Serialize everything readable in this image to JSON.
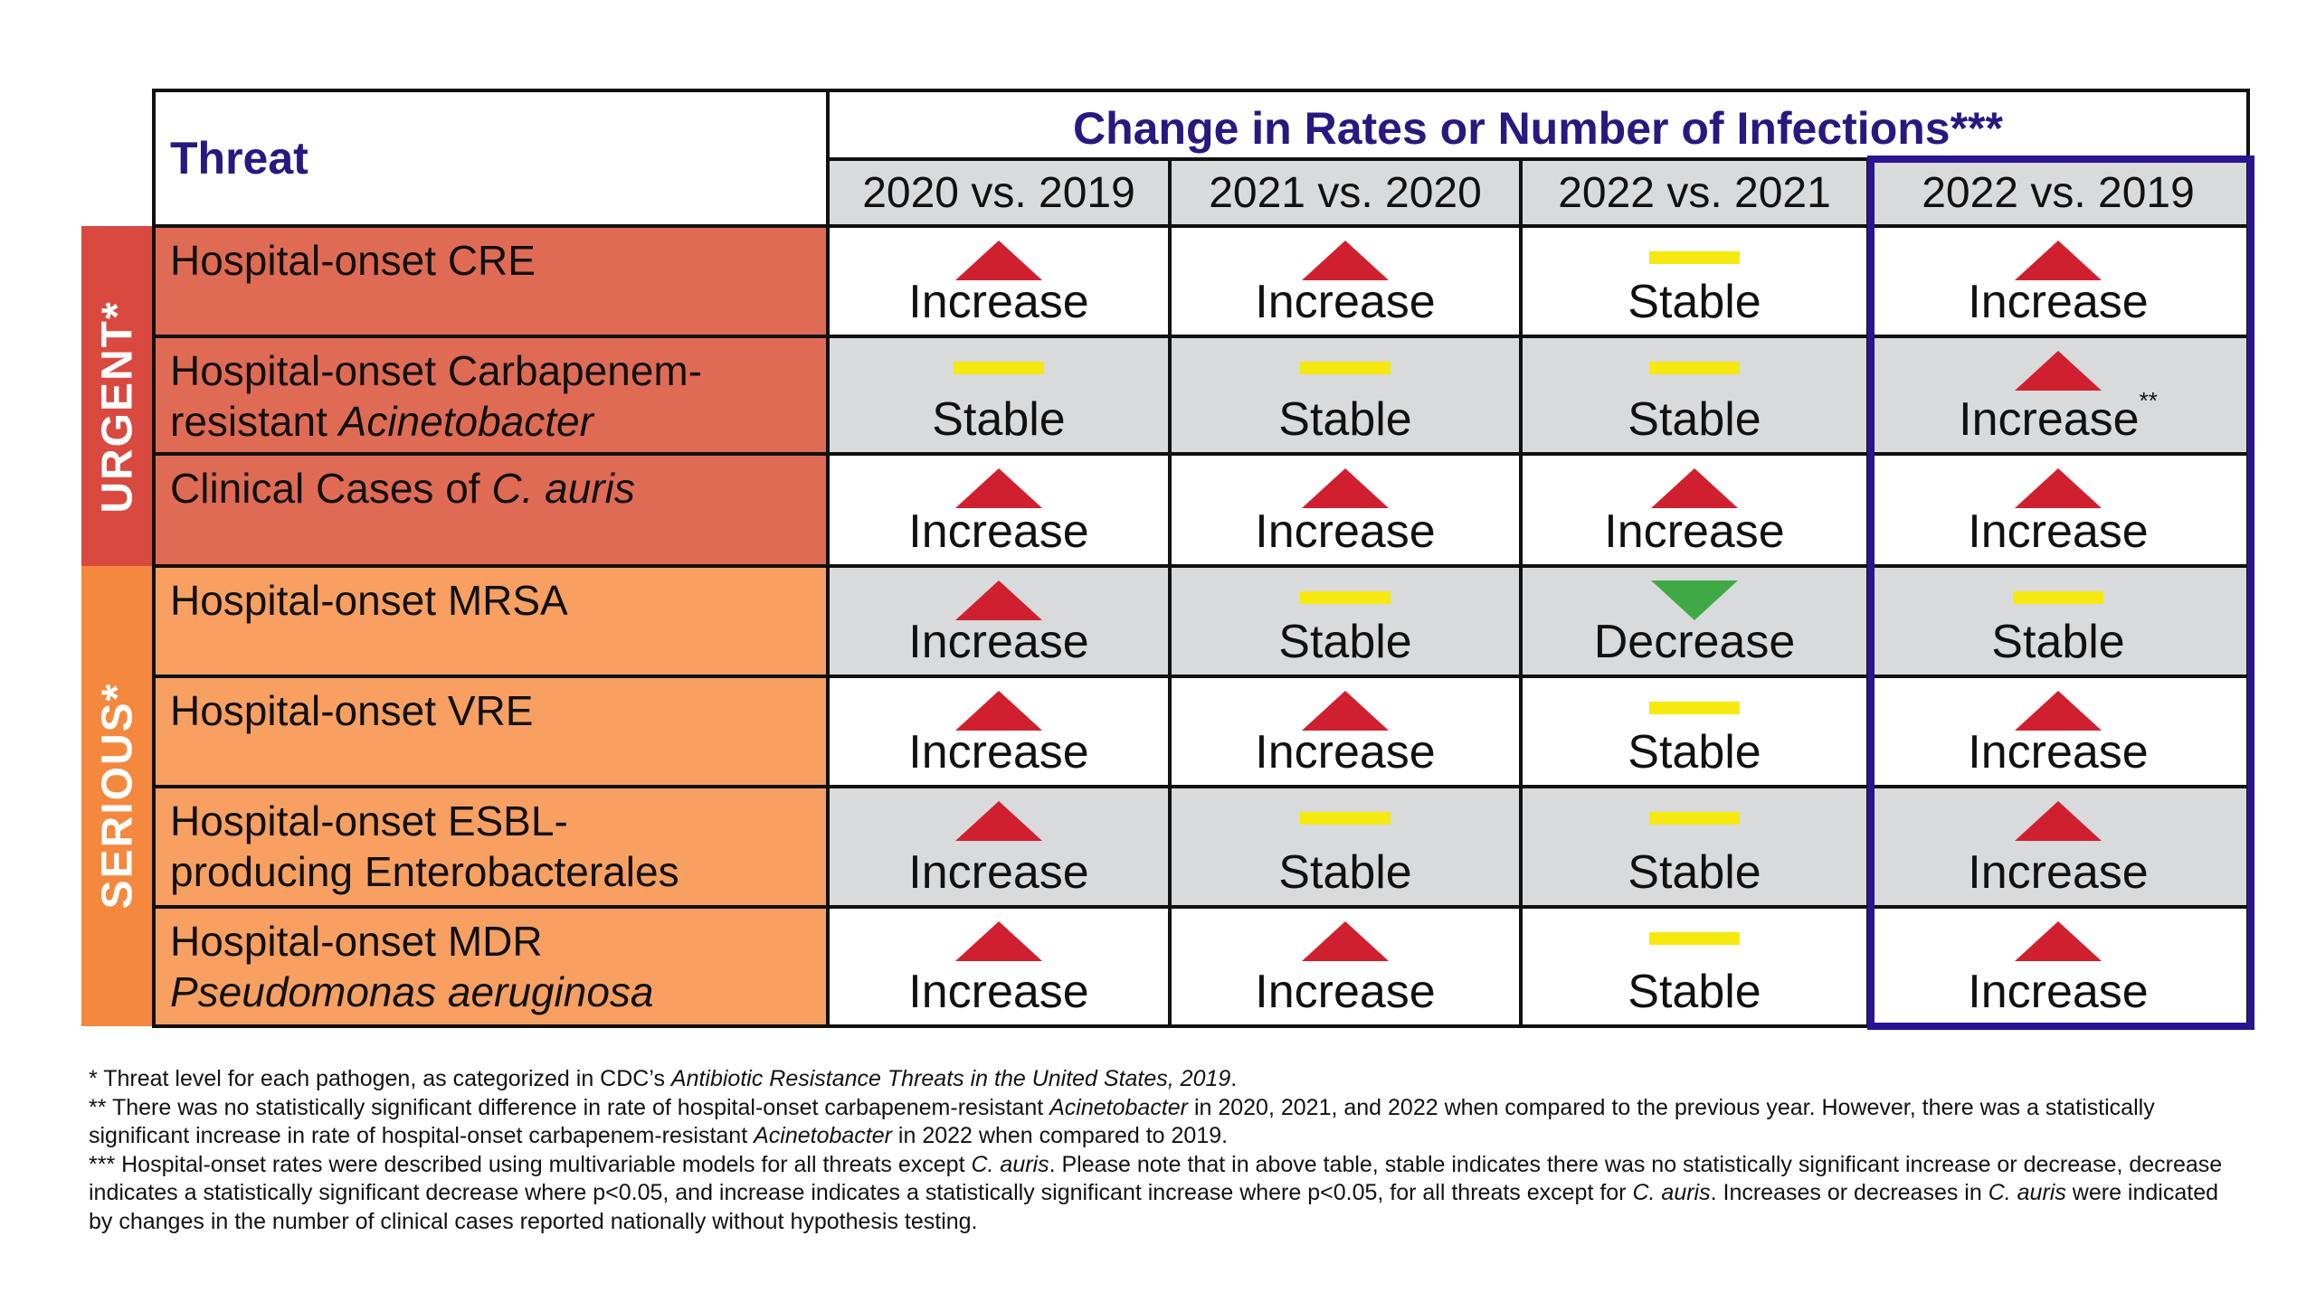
{
  "header": {
    "threat_label": "Threat",
    "change_label": "Change in Rates or Number of Infections***",
    "columns": [
      "2020 vs. 2019",
      "2021 vs. 2020",
      "2022 vs. 2021",
      "2022 vs. 2019"
    ]
  },
  "categories": [
    {
      "label": "URGENT*",
      "color": "#d9493f"
    },
    {
      "label": "SERIOUS*",
      "color": "#f4883e"
    }
  ],
  "colors": {
    "urgent_row": "#e06b55",
    "serious_row": "#f7a062",
    "increase": "#d02030",
    "decrease": "#3faa45",
    "stable": "#f5e90f",
    "shaded_cell": "#d9dadc",
    "highlight_border": "#2a1494",
    "header_text": "#2a1880"
  },
  "rows": [
    {
      "category": "URGENT*",
      "name_parts": [
        "Hospital-onset CRE"
      ],
      "values": [
        {
          "status": "Increase"
        },
        {
          "status": "Increase"
        },
        {
          "status": "Stable"
        },
        {
          "status": "Increase"
        }
      ]
    },
    {
      "category": "URGENT*",
      "name_parts": [
        "Hospital-onset Carbapenem-",
        "resistant ",
        "Acinetobacter"
      ],
      "values": [
        {
          "status": "Stable"
        },
        {
          "status": "Stable"
        },
        {
          "status": "Stable"
        },
        {
          "status": "Increase",
          "note": "**"
        }
      ]
    },
    {
      "category": "URGENT*",
      "name_parts": [
        "Clinical Cases of ",
        "C. auris"
      ],
      "values": [
        {
          "status": "Increase"
        },
        {
          "status": "Increase"
        },
        {
          "status": "Increase"
        },
        {
          "status": "Increase"
        }
      ]
    },
    {
      "category": "SERIOUS*",
      "name_parts": [
        "Hospital-onset MRSA"
      ],
      "values": [
        {
          "status": "Increase"
        },
        {
          "status": "Stable"
        },
        {
          "status": "Decrease"
        },
        {
          "status": "Stable"
        }
      ]
    },
    {
      "category": "SERIOUS*",
      "name_parts": [
        "Hospital-onset VRE"
      ],
      "values": [
        {
          "status": "Increase"
        },
        {
          "status": "Increase"
        },
        {
          "status": "Stable"
        },
        {
          "status": "Increase"
        }
      ]
    },
    {
      "category": "SERIOUS*",
      "name_parts": [
        "Hospital-onset ESBL-",
        "producing Enterobacterales"
      ],
      "values": [
        {
          "status": "Increase"
        },
        {
          "status": "Stable"
        },
        {
          "status": "Stable"
        },
        {
          "status": "Increase"
        }
      ]
    },
    {
      "category": "SERIOUS*",
      "name_parts": [
        "Hospital-onset MDR",
        "Pseudomonas aeruginosa"
      ],
      "values": [
        {
          "status": "Increase"
        },
        {
          "status": "Increase"
        },
        {
          "status": "Stable"
        },
        {
          "status": "Increase"
        }
      ]
    }
  ],
  "footnotes": {
    "fn1": [
      "* Threat level for each pathogen, as categorized in CDC’s ",
      "Antibiotic Resistance Threats in the United States, 2019",
      "."
    ],
    "fn2": [
      "** There was no statistically significant difference in rate of hospital-onset carbapenem-resistant ",
      "Acinetobacter",
      " in 2020, 2021, and 2022 when compared to the previous year. However, there was a statistically significant increase in rate of hospital-onset carbapenem-resistant ",
      "Acinetobacter",
      " in 2022 when compared to 2019."
    ],
    "fn3": [
      "*** Hospital-onset rates were described using multivariable models for all threats except ",
      "C. auris",
      ". Please note that in above table, stable indicates there was no statistically significant increase or decrease, decrease indicates a statistically significant decrease where p<0.05, and increase indicates a statistically significant increase where p<0.05, for all threats except for ",
      "C. auris",
      ". Increases or decreases in ",
      "C. auris",
      " were indicated by changes in the number of clinical cases reported nationally without hypothesis testing."
    ]
  }
}
